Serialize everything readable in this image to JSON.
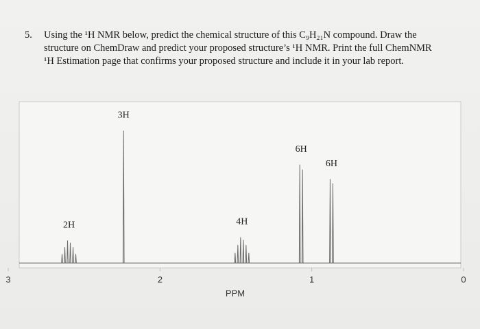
{
  "question": {
    "number": "5.",
    "lines": [
      "Using the ¹H NMR below, predict the chemical structure of this C₉H₂₁N compound. Draw the",
      "structure on ChemDraw and predict your proposed structure’s ¹H NMR. Print the full ChemNMR",
      "¹H Estimation page that confirms your proposed structure and include it in your lab report."
    ]
  },
  "chart_data": {
    "type": "spectrum",
    "xlabel": "PPM",
    "x": [
      2.6,
      2.24,
      1.46,
      1.07,
      0.87
    ],
    "values": [
      14,
      82,
      16,
      61,
      52
    ],
    "annotations": [
      "2H",
      "3H",
      "4H",
      "6H",
      "6H"
    ],
    "xlim": [
      3,
      0
    ],
    "xticks": [
      3,
      2,
      1,
      0
    ],
    "ylim": [
      0,
      100
    ],
    "color": "#6a6a6a"
  }
}
